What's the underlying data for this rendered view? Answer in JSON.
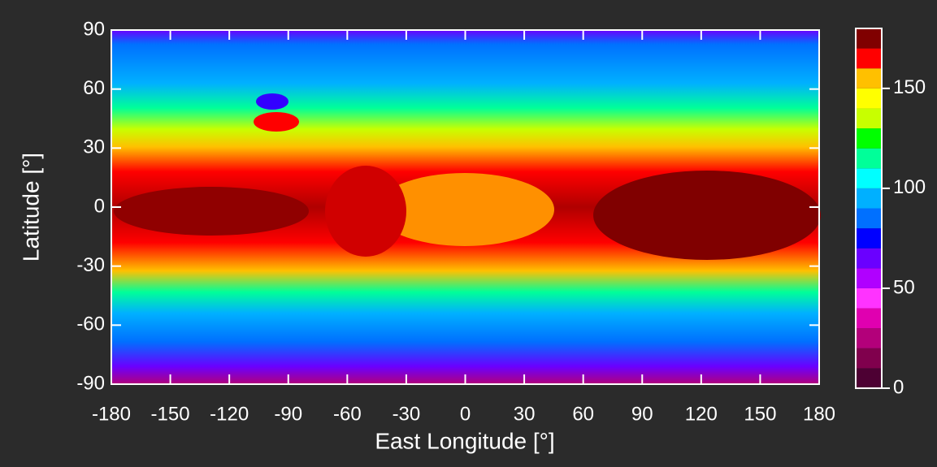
{
  "chart_data": {
    "type": "heatmap",
    "xlabel": "East Longitude [°]",
    "ylabel": "Latitude [°]",
    "xlim": [
      -180,
      180
    ],
    "ylim": [
      -90,
      90
    ],
    "xticks": [
      -180,
      -150,
      -120,
      -90,
      -60,
      -30,
      0,
      30,
      60,
      90,
      120,
      150,
      180
    ],
    "yticks": [
      -90,
      -60,
      -30,
      0,
      30,
      60,
      90
    ],
    "colorbar": {
      "clim": [
        0,
        180
      ],
      "ticks": [
        0,
        50,
        100,
        150
      ],
      "levels": [
        0,
        10,
        20,
        30,
        40,
        50,
        60,
        70,
        80,
        90,
        100,
        110,
        120,
        130,
        140,
        150,
        160,
        170,
        180
      ],
      "colors": [
        "#4d0033",
        "#80004d",
        "#b3007a",
        "#e000b0",
        "#ff33ff",
        "#b000ff",
        "#6a00ff",
        "#0000ff",
        "#0070ff",
        "#00b0ff",
        "#00ffff",
        "#00ff99",
        "#00ff00",
        "#c8ff00",
        "#ffff00",
        "#ffc000",
        "#ff0000",
        "#800000"
      ]
    }
  }
}
